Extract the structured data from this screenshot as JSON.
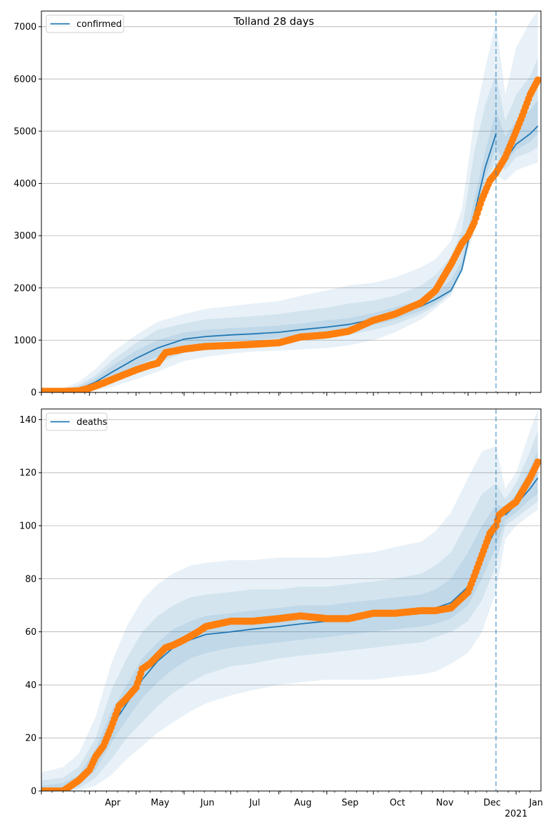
{
  "title": "Tolland 28 days",
  "colors": {
    "model": "#1f77b4",
    "observed": "#ff7f0e",
    "band": "#1f77b4",
    "forecast_line": "#1f77b4"
  },
  "chart_data": [
    {
      "type": "line",
      "legend": "confirmed",
      "legend_position": "top-left",
      "grid": "horizontal",
      "ylim": [
        0,
        7300
      ],
      "yticks": [
        0,
        1000,
        2000,
        3000,
        4000,
        5000,
        6000,
        7000
      ],
      "forecast_start": "2020-12-19",
      "model": {
        "x": [
          "2020-03-01",
          "2020-03-15",
          "2020-03-25",
          "2020-04-05",
          "2020-04-15",
          "2020-05-01",
          "2020-05-15",
          "2020-06-01",
          "2020-06-15",
          "2020-07-01",
          "2020-07-15",
          "2020-08-01",
          "2020-08-15",
          "2020-09-01",
          "2020-09-15",
          "2020-10-01",
          "2020-10-15",
          "2020-11-01",
          "2020-11-10",
          "2020-11-20",
          "2020-11-27",
          "2020-12-05",
          "2020-12-12",
          "2020-12-19",
          "2020-12-25",
          "2021-01-01",
          "2021-01-10",
          "2021-01-15"
        ],
        "y": [
          5,
          10,
          60,
          200,
          380,
          650,
          850,
          1020,
          1070,
          1100,
          1120,
          1150,
          1200,
          1250,
          1300,
          1400,
          1500,
          1650,
          1780,
          1950,
          2350,
          3400,
          4300,
          4950,
          4450,
          4750,
          4950,
          5100
        ]
      },
      "observed": {
        "x": [
          "2020-03-01",
          "2020-03-15",
          "2020-03-25",
          "2020-04-01",
          "2020-04-10",
          "2020-04-20",
          "2020-05-01",
          "2020-05-10",
          "2020-05-15",
          "2020-05-20",
          "2020-06-01",
          "2020-06-15",
          "2020-07-01",
          "2020-07-15",
          "2020-08-01",
          "2020-08-15",
          "2020-09-01",
          "2020-09-15",
          "2020-10-01",
          "2020-10-15",
          "2020-11-01",
          "2020-11-10",
          "2020-11-20",
          "2020-11-27",
          "2020-12-01",
          "2020-12-05",
          "2020-12-10",
          "2020-12-15",
          "2020-12-19",
          "2020-12-25",
          "2021-01-01",
          "2021-01-05",
          "2021-01-10",
          "2021-01-15"
        ],
        "y": [
          20,
          20,
          30,
          80,
          180,
          300,
          430,
          520,
          560,
          760,
          830,
          880,
          900,
          920,
          950,
          1060,
          1100,
          1170,
          1380,
          1500,
          1720,
          1950,
          2450,
          2850,
          3000,
          3250,
          3700,
          4050,
          4200,
          4500,
          5000,
          5300,
          5700,
          5980
        ]
      },
      "bands": [
        {
          "lo": [
            0,
            0,
            5,
            40,
            100,
            250,
            400,
            600,
            680,
            740,
            780,
            800,
            820,
            850,
            900,
            1000,
            1150,
            1400,
            1600,
            1850,
            2300,
            3100,
            3700,
            4150,
            4050,
            4250,
            4350,
            4400
          ],
          "hi": [
            60,
            80,
            200,
            450,
            750,
            1100,
            1350,
            1500,
            1600,
            1650,
            1700,
            1750,
            1850,
            1950,
            2050,
            2100,
            2200,
            2400,
            2550,
            2900,
            3500,
            5200,
            6200,
            7100,
            5700,
            6600,
            7100,
            7300
          ]
        },
        {
          "lo": [
            0,
            2,
            15,
            80,
            180,
            400,
            560,
            760,
            830,
            880,
            900,
            940,
            990,
            1050,
            1100,
            1200,
            1300,
            1500,
            1660,
            1900,
            2330,
            3250,
            3950,
            4450,
            4250,
            4500,
            4600,
            4700
          ],
          "hi": [
            30,
            40,
            140,
            330,
            600,
            950,
            1200,
            1320,
            1400,
            1430,
            1460,
            1500,
            1560,
            1620,
            1700,
            1760,
            1850,
            2050,
            2250,
            2600,
            3100,
            4600,
            5500,
            6100,
            5200,
            5700,
            6050,
            6400
          ]
        },
        {
          "lo": [
            0,
            5,
            30,
            120,
            260,
            500,
            690,
            880,
            950,
            990,
            1010,
            1040,
            1090,
            1140,
            1190,
            1290,
            1390,
            1560,
            1700,
            1920,
            2340,
            3320,
            4100,
            4700,
            4380,
            4640,
            4800,
            4950
          ],
          "hi": [
            15,
            20,
            100,
            270,
            500,
            800,
            1000,
            1150,
            1200,
            1230,
            1250,
            1280,
            1320,
            1380,
            1420,
            1520,
            1630,
            1770,
            1880,
            2150,
            2520,
            3700,
            4600,
            5400,
            4900,
            5200,
            5400,
            5600
          ]
        }
      ]
    },
    {
      "type": "line",
      "legend": "deaths",
      "legend_position": "top-left",
      "grid": "horizontal",
      "ylim": [
        0,
        144
      ],
      "yticks": [
        0,
        20,
        40,
        60,
        80,
        100,
        120,
        140
      ],
      "xtick_labels": [
        "Apr",
        "May",
        "Jun",
        "Jul",
        "Aug",
        "Sep",
        "Oct",
        "Nov",
        "Dec",
        "Jan"
      ],
      "xtick_dates": [
        "2020-04-01",
        "2020-05-01",
        "2020-06-01",
        "2020-07-01",
        "2020-08-01",
        "2020-09-01",
        "2020-10-01",
        "2020-11-01",
        "2020-12-01",
        "2021-01-01"
      ],
      "year_label": "2021",
      "forecast_start": "2020-12-19",
      "model": {
        "x": [
          "2020-03-01",
          "2020-03-15",
          "2020-03-25",
          "2020-04-05",
          "2020-04-15",
          "2020-04-25",
          "2020-05-05",
          "2020-05-15",
          "2020-05-25",
          "2020-06-05",
          "2020-06-15",
          "2020-07-01",
          "2020-07-15",
          "2020-08-01",
          "2020-08-15",
          "2020-09-01",
          "2020-09-15",
          "2020-10-01",
          "2020-10-15",
          "2020-11-01",
          "2020-11-10",
          "2020-11-20",
          "2020-12-01",
          "2020-12-10",
          "2020-12-19",
          "2020-12-25",
          "2021-01-01",
          "2021-01-10",
          "2021-01-15"
        ],
        "y": [
          0,
          1,
          3,
          12,
          24,
          33,
          42,
          49,
          54,
          57,
          59,
          60,
          61,
          62,
          63,
          64,
          65,
          66,
          67,
          68,
          69,
          71,
          77,
          88,
          99,
          104,
          108,
          114,
          118
        ]
      },
      "observed": {
        "x": [
          "2020-03-01",
          "2020-03-15",
          "2020-03-20",
          "2020-03-25",
          "2020-04-01",
          "2020-04-05",
          "2020-04-10",
          "2020-04-15",
          "2020-04-20",
          "2020-04-25",
          "2020-05-01",
          "2020-05-05",
          "2020-05-10",
          "2020-05-15",
          "2020-05-20",
          "2020-05-25",
          "2020-06-01",
          "2020-06-10",
          "2020-06-15",
          "2020-07-01",
          "2020-07-15",
          "2020-08-01",
          "2020-08-15",
          "2020-09-01",
          "2020-09-15",
          "2020-10-01",
          "2020-10-15",
          "2020-11-01",
          "2020-11-10",
          "2020-11-20",
          "2020-12-01",
          "2020-12-05",
          "2020-12-10",
          "2020-12-15",
          "2020-12-19",
          "2020-12-21",
          "2020-12-25",
          "2021-01-01",
          "2021-01-05",
          "2021-01-10",
          "2021-01-15"
        ],
        "y": [
          0,
          0,
          2,
          4,
          8,
          13,
          17,
          24,
          32,
          35,
          39,
          46,
          48,
          51,
          54,
          55,
          57,
          60,
          62,
          64,
          64,
          65,
          66,
          65,
          65,
          67,
          67,
          68,
          68,
          69,
          75,
          81,
          89,
          97,
          100,
          104,
          106,
          109,
          113,
          118,
          124
        ]
      },
      "bands": [
        {
          "lo": [
            0,
            0,
            0,
            2,
            6,
            12,
            17,
            22,
            26,
            30,
            33,
            36,
            38,
            40,
            41,
            42,
            42,
            42,
            43,
            44,
            45,
            48,
            52,
            60,
            75,
            95,
            100,
            104,
            106
          ],
          "hi": [
            7,
            9,
            14,
            28,
            48,
            62,
            72,
            78,
            82,
            85,
            86,
            87,
            87,
            88,
            88,
            88,
            89,
            90,
            92,
            94,
            98,
            105,
            118,
            128,
            130,
            114,
            120,
            136,
            144
          ]
        },
        {
          "lo": [
            0,
            0,
            1,
            5,
            12,
            20,
            26,
            32,
            37,
            41,
            44,
            47,
            48,
            50,
            51,
            52,
            53,
            54,
            55,
            56,
            58,
            60,
            64,
            72,
            85,
            100,
            103,
            107,
            109
          ],
          "hi": [
            4,
            5,
            9,
            20,
            38,
            50,
            60,
            66,
            70,
            73,
            74,
            75,
            76,
            76,
            77,
            77,
            78,
            79,
            80,
            82,
            85,
            90,
            102,
            112,
            116,
            110,
            116,
            128,
            136
          ]
        },
        {
          "lo": [
            0,
            0,
            2,
            8,
            18,
            27,
            35,
            41,
            46,
            50,
            52,
            54,
            55,
            56,
            57,
            58,
            59,
            60,
            61,
            62,
            63,
            65,
            70,
            80,
            92,
            102,
            105,
            110,
            112
          ],
          "hi": [
            2,
            3,
            6,
            16,
            30,
            40,
            50,
            56,
            61,
            64,
            66,
            67,
            68,
            69,
            70,
            70,
            71,
            72,
            73,
            74,
            76,
            80,
            90,
            100,
            108,
            107,
            112,
            122,
            128
          ]
        }
      ]
    }
  ]
}
